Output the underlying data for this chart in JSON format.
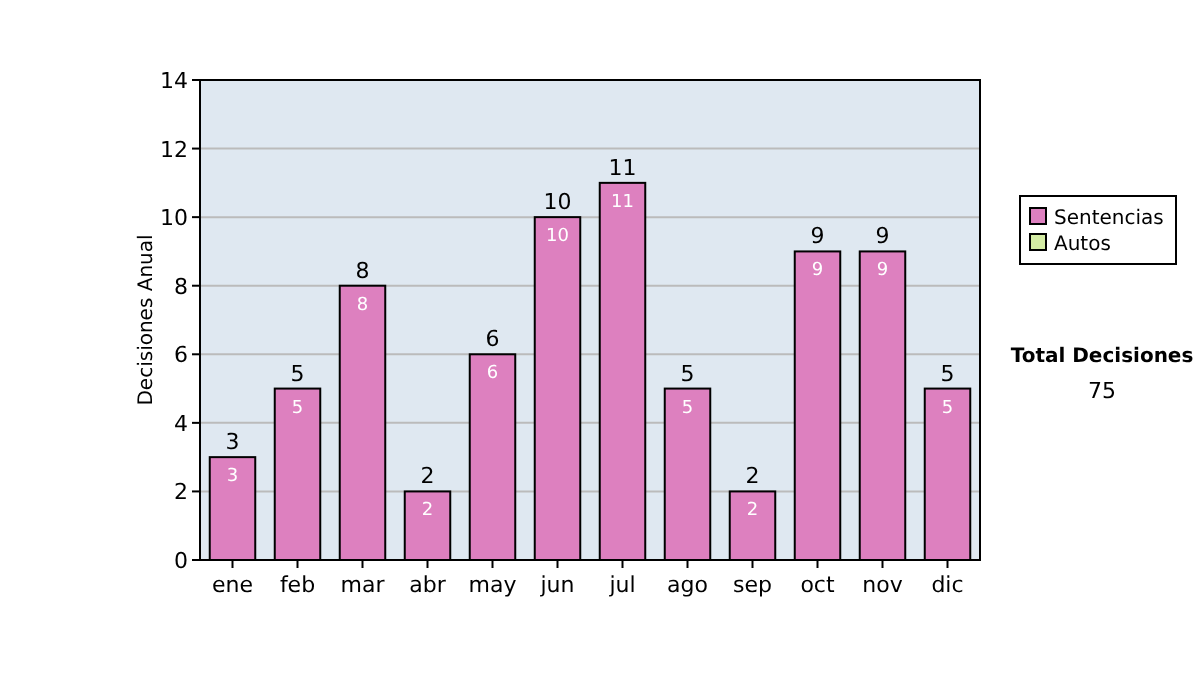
{
  "chart_data": {
    "type": "bar",
    "stacked": true,
    "ylabel": "Decisiones Anual",
    "categories": [
      "ene",
      "feb",
      "mar",
      "abr",
      "may",
      "jun",
      "jul",
      "ago",
      "sep",
      "oct",
      "nov",
      "dic"
    ],
    "series": [
      {
        "name": "Sentencias",
        "color": "#dd80bf",
        "values": [
          3,
          5,
          8,
          2,
          6,
          10,
          11,
          5,
          2,
          9,
          9,
          5
        ],
        "value_labels": [
          "3",
          "5",
          "8",
          "2",
          "6",
          "10",
          "11",
          "5",
          "2",
          "9",
          "9",
          "5"
        ]
      },
      {
        "name": "Autos",
        "color": "#d4eca4",
        "values": [
          0,
          0,
          0,
          0,
          0,
          0,
          0,
          0,
          0,
          0,
          0,
          0
        ]
      }
    ],
    "totals": [
      "3",
      "5",
      "8",
      "2",
      "6",
      "10",
      "11",
      "5",
      "2",
      "9",
      "9",
      "5"
    ],
    "ylim": [
      0,
      14
    ],
    "yticks": [
      0,
      2,
      4,
      6,
      8,
      10,
      12,
      14
    ],
    "grid": "y",
    "legend": "right",
    "annotations": [
      "Total Decisiones",
      "75"
    ]
  }
}
